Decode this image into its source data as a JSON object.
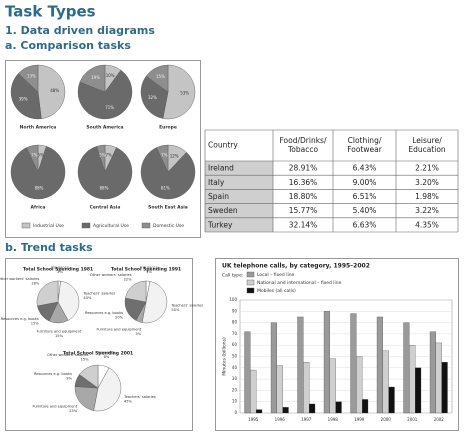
{
  "header": {
    "title": "Task Types",
    "section1": "1. Data driven diagrams",
    "subsection_a": "a. Comparison tasks",
    "subsection_b": "b. Trend tasks"
  },
  "table": {
    "header": [
      [
        "Country"
      ],
      [
        "Food/Drinks/",
        "Tobacco"
      ],
      [
        "Clothing/",
        "Footwear"
      ],
      [
        "Leisure/",
        "Education"
      ]
    ],
    "rows": [
      [
        "Ireland",
        "28.91%",
        "6.43%",
        "2.21%"
      ],
      [
        "Italy",
        "16.36%",
        "9.00%",
        "3.20%"
      ],
      [
        "Spain",
        "18.80%",
        "6.51%",
        "1.98%"
      ],
      [
        "Sweden",
        "15.77%",
        "5.40%",
        "3.22%"
      ],
      [
        "Turkey",
        "32.14%",
        "6.63%",
        "4.35%"
      ]
    ]
  },
  "chart_data": [
    {
      "type": "pie",
      "categories": [
        "Industrial Use",
        "Agricultural Use",
        "Domestic Use"
      ],
      "colors": [
        "#c4c4c4",
        "#6a6a6a",
        "#8e8e8e"
      ],
      "pies": [
        {
          "title": "North America",
          "values": [
            48,
            39,
            13
          ],
          "value_labels": [
            "48%",
            "39%",
            "13%"
          ]
        },
        {
          "title": "South America",
          "values": [
            10,
            71,
            19
          ],
          "value_labels": [
            "10%",
            "71%",
            "19%"
          ]
        },
        {
          "title": "Europe",
          "values": [
            53,
            32,
            15
          ],
          "value_labels": [
            "53%",
            "32%",
            "15%"
          ]
        },
        {
          "title": "Africa",
          "values": [
            5,
            88,
            7
          ],
          "value_labels": [
            "5%",
            "88%",
            "7%"
          ]
        },
        {
          "title": "Central Asia",
          "values": [
            7,
            88,
            5
          ],
          "value_labels": [
            "7%",
            "88%",
            "5%"
          ]
        },
        {
          "title": "South East Asia",
          "values": [
            12,
            81,
            7
          ],
          "value_labels": [
            "12%",
            "81%",
            "7%"
          ]
        }
      ]
    },
    {
      "type": "pie",
      "categories": [
        "Insurance",
        "Teachers' salaries",
        "Furniture and equipment",
        "Resources e.g. books",
        "Other workers' salaries"
      ],
      "colors": [
        "#ffffff",
        "#f2f2f2",
        "#a8a8a8",
        "#6f6f6f",
        "#cfcfcf"
      ],
      "pies": [
        {
          "title": "Total School Spending 1981",
          "values": [
            2,
            40,
            15,
            15,
            28
          ],
          "value_labels": [
            "2%",
            "40%",
            "15%",
            "15%",
            "28%"
          ]
        },
        {
          "title": "Total School Spending 1991",
          "values": [
            3,
            50,
            5,
            20,
            22
          ],
          "value_labels": [
            "3%",
            "50%",
            "5%",
            "20%",
            "22%"
          ]
        },
        {
          "title": "Total School Spending 2001",
          "values": [
            8,
            45,
            23,
            9,
            15
          ],
          "value_labels": [
            "8%",
            "45%",
            "23%",
            "9%",
            "15%"
          ]
        }
      ]
    },
    {
      "type": "bar",
      "title": "UK telephone calls, by category, 1995–2002",
      "legend_title": "Call type:",
      "y_label": "Minutes (billions)",
      "categories": [
        "1995",
        "1996",
        "1997",
        "1998",
        "1999",
        "2000",
        "2001",
        "2002"
      ],
      "series": [
        {
          "name": "Local – fixed line",
          "color": "#9a9a9a",
          "values": [
            72,
            80,
            85,
            90,
            88,
            85,
            80,
            72
          ]
        },
        {
          "name": "National and international – fixed line",
          "color": "#cfcfcf",
          "values": [
            38,
            42,
            45,
            48,
            50,
            55,
            60,
            62
          ]
        },
        {
          "name": "Mobiles (all calls)",
          "color": "#111111",
          "values": [
            3,
            5,
            8,
            10,
            12,
            23,
            40,
            45
          ]
        }
      ],
      "ylim": [
        0,
        100
      ],
      "yticks": [
        0,
        10,
        20,
        30,
        40,
        50,
        60,
        70,
        80,
        90,
        100
      ],
      "grid": true
    }
  ]
}
